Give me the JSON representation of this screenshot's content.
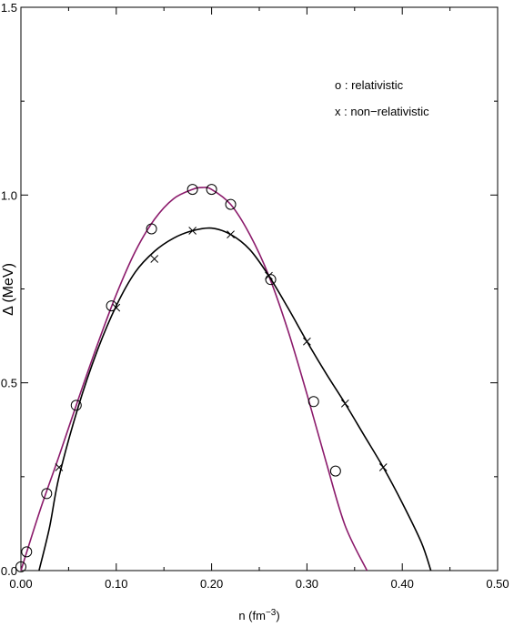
{
  "chart_data": {
    "type": "scatter",
    "title": "",
    "xlabel": {
      "base": "n  (fm",
      "sup": "−3",
      "close": ")"
    },
    "ylabel": "Δ  (MeV)",
    "xlim": [
      0.0,
      0.5
    ],
    "ylim": [
      0.0,
      1.5
    ],
    "xticks": [
      0.0,
      0.1,
      0.2,
      0.3,
      0.4,
      0.5
    ],
    "xtick_labels": [
      "0.00",
      "0.10",
      "0.20",
      "0.30",
      "0.40",
      "0.50"
    ],
    "yticks": [
      0.0,
      0.5,
      1.0,
      1.5
    ],
    "ytick_labels": [
      "0.0",
      "0.5",
      "1.0",
      "1.5"
    ],
    "grid": false,
    "legend": {
      "placement": "top-right",
      "entries": [
        "o : relativistic",
        "x : non−relativistic"
      ]
    },
    "series": [
      {
        "marker": "circle",
        "color": "#8b1a6b",
        "points": [
          [
            0.0,
            0.01
          ],
          [
            0.006,
            0.05
          ],
          [
            0.027,
            0.205
          ],
          [
            0.058,
            0.44
          ],
          [
            0.095,
            0.705
          ],
          [
            0.137,
            0.91
          ],
          [
            0.18,
            1.015
          ],
          [
            0.2,
            1.015
          ],
          [
            0.22,
            0.975
          ],
          [
            0.262,
            0.775
          ],
          [
            0.307,
            0.45
          ],
          [
            0.33,
            0.265
          ]
        ],
        "curve": [
          [
            0.0,
            0.0
          ],
          [
            0.02,
            0.16
          ],
          [
            0.04,
            0.305
          ],
          [
            0.06,
            0.455
          ],
          [
            0.08,
            0.6
          ],
          [
            0.1,
            0.735
          ],
          [
            0.12,
            0.85
          ],
          [
            0.14,
            0.935
          ],
          [
            0.16,
            0.99
          ],
          [
            0.18,
            1.015
          ],
          [
            0.19,
            1.02
          ],
          [
            0.2,
            1.015
          ],
          [
            0.22,
            0.975
          ],
          [
            0.24,
            0.895
          ],
          [
            0.26,
            0.785
          ],
          [
            0.28,
            0.64
          ],
          [
            0.3,
            0.47
          ],
          [
            0.32,
            0.29
          ],
          [
            0.34,
            0.12
          ],
          [
            0.363,
            0.0
          ]
        ]
      },
      {
        "marker": "x",
        "color": "#000000",
        "points": [
          [
            0.04,
            0.275
          ],
          [
            0.1,
            0.7
          ],
          [
            0.14,
            0.83
          ],
          [
            0.18,
            0.905
          ],
          [
            0.22,
            0.895
          ],
          [
            0.26,
            0.785
          ],
          [
            0.3,
            0.61
          ],
          [
            0.34,
            0.445
          ],
          [
            0.38,
            0.275
          ]
        ],
        "curve": [
          [
            0.019,
            0.0
          ],
          [
            0.03,
            0.115
          ],
          [
            0.04,
            0.25
          ],
          [
            0.06,
            0.435
          ],
          [
            0.08,
            0.585
          ],
          [
            0.1,
            0.705
          ],
          [
            0.12,
            0.795
          ],
          [
            0.14,
            0.85
          ],
          [
            0.16,
            0.885
          ],
          [
            0.18,
            0.905
          ],
          [
            0.2,
            0.912
          ],
          [
            0.22,
            0.895
          ],
          [
            0.24,
            0.855
          ],
          [
            0.26,
            0.785
          ],
          [
            0.28,
            0.7
          ],
          [
            0.3,
            0.61
          ],
          [
            0.32,
            0.525
          ],
          [
            0.34,
            0.445
          ],
          [
            0.36,
            0.36
          ],
          [
            0.38,
            0.275
          ],
          [
            0.4,
            0.18
          ],
          [
            0.42,
            0.075
          ],
          [
            0.43,
            0.0
          ]
        ]
      }
    ]
  }
}
